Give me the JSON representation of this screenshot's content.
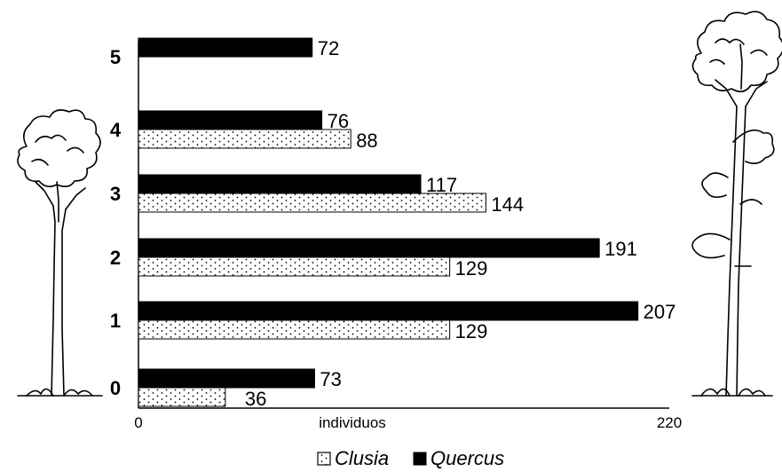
{
  "chart_data": {
    "type": "bar",
    "orientation": "horizontal",
    "categories": [
      "0",
      "1",
      "2",
      "3",
      "4",
      "5"
    ],
    "series": [
      {
        "name": "Clusia",
        "color": "#ffffff",
        "pattern": "dots",
        "values": [
          36,
          129,
          129,
          144,
          88,
          null
        ]
      },
      {
        "name": "Quercus",
        "color": "#000000",
        "pattern": "solid",
        "values": [
          73,
          207,
          191,
          117,
          76,
          72
        ]
      }
    ],
    "xlabel": "individuos",
    "xlim": [
      0,
      220
    ],
    "x_ticks": [
      "0",
      "220"
    ],
    "ylabel": "",
    "title": "",
    "grid": false,
    "legend_position": "bottom"
  },
  "illustrations": {
    "left": "small-tree-drawing",
    "right": "tall-tree-drawing"
  }
}
